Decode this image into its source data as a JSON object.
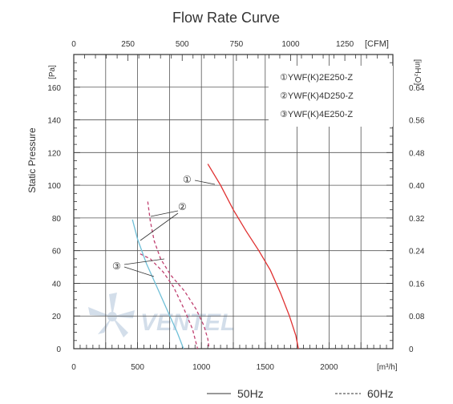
{
  "chart_data": {
    "type": "line",
    "title": "Flow Rate Curve",
    "xlabel": "[m³/h]",
    "ylabel": "Static Pressure",
    "x_range": [
      0,
      2500
    ],
    "y_range": [
      0,
      180
    ],
    "x_ticks": [
      0,
      500,
      1000,
      1500,
      2000
    ],
    "y_ticks": [
      0,
      20,
      40,
      60,
      80,
      100,
      120,
      140,
      160
    ],
    "y_unit": "[Pa]",
    "top_axis": {
      "unit": "[CFM]",
      "ticks": [
        0,
        250,
        500,
        750,
        1000,
        1250
      ]
    },
    "right_axis": {
      "unit": "[inH₂O]",
      "ticks": [
        "0",
        "0.08",
        "0.16",
        "0.24",
        "0.32",
        "0.40",
        "0.48",
        "0.56",
        "0.64"
      ]
    },
    "legend": {
      "placement": "top-right",
      "entries": [
        "①YWF(K)2E250-Z",
        "②YWF(K)4D250-Z",
        "③YWF(K)4E250-Z"
      ]
    },
    "line_styles": {
      "solid": "50Hz",
      "dashed": "60Hz"
    },
    "callouts": [
      "①",
      "②",
      "③"
    ],
    "series": [
      {
        "color": "#e03030",
        "dash": false,
        "points": [
          [
            1050,
            113
          ],
          [
            1150,
            100
          ],
          [
            1250,
            85
          ],
          [
            1350,
            72
          ],
          [
            1450,
            60
          ],
          [
            1540,
            48
          ],
          [
            1620,
            34
          ],
          [
            1690,
            20
          ],
          [
            1740,
            8
          ],
          [
            1760,
            0
          ]
        ]
      },
      {
        "color": "#c04070",
        "dash": true,
        "points": [
          [
            580,
            90
          ],
          [
            600,
            78
          ],
          [
            630,
            66
          ],
          [
            680,
            55
          ],
          [
            760,
            45
          ],
          [
            870,
            35
          ],
          [
            960,
            24
          ],
          [
            1020,
            14
          ],
          [
            1050,
            6
          ],
          [
            1060,
            0
          ]
        ]
      },
      {
        "color": "#c04070",
        "dash": true,
        "points": [
          [
            520,
            58
          ],
          [
            600,
            55
          ],
          [
            700,
            47
          ],
          [
            780,
            38
          ],
          [
            860,
            25
          ],
          [
            930,
            12
          ],
          [
            970,
            0
          ]
        ]
      },
      {
        "color": "#70c0d8",
        "dash": false,
        "points": [
          [
            460,
            79
          ],
          [
            500,
            67
          ],
          [
            570,
            52
          ],
          [
            650,
            38
          ],
          [
            730,
            24
          ],
          [
            810,
            10
          ],
          [
            860,
            0
          ]
        ]
      }
    ]
  },
  "watermark": "VENTEL"
}
